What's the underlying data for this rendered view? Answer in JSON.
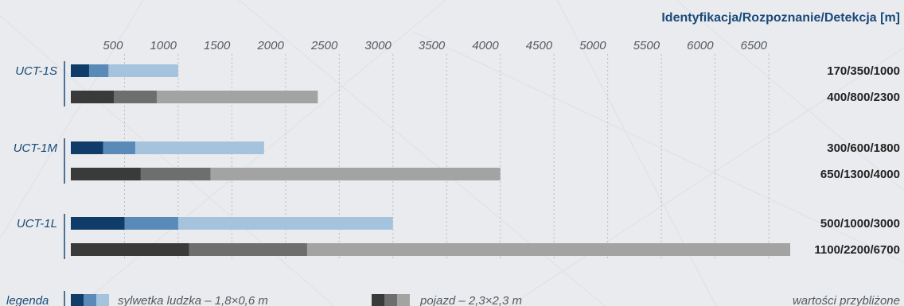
{
  "colors": {
    "human": [
      "#103c6a",
      "#5a8bb8",
      "#a6c3de"
    ],
    "vehicle": [
      "#3a3a3a",
      "#6e6e6e",
      "#a3a3a3"
    ],
    "accent": "#1a4a7a",
    "grid": "#b8bcc2"
  },
  "chart_data": {
    "type": "bar",
    "orientation": "horizontal",
    "stacked": true,
    "title": "Identyfikacja/Rozpoznanie/Detekcja [m]",
    "x_ticks": [
      "500",
      "1000",
      "1500",
      "2000",
      "2500",
      "3000",
      "3500",
      "4000",
      "4500",
      "5000",
      "5500",
      "6000",
      "6500"
    ],
    "xlim": [
      0,
      6700
    ],
    "grid": true,
    "products": [
      {
        "name": "UCT-1S",
        "bars": [
          {
            "kind": "human",
            "values": [
              170,
              350,
              1000
            ],
            "label": "170/350/1000"
          },
          {
            "kind": "vehicle",
            "values": [
              400,
              800,
              2300
            ],
            "label": "400/800/2300"
          }
        ]
      },
      {
        "name": "UCT-1M",
        "bars": [
          {
            "kind": "human",
            "values": [
              300,
              600,
              1800
            ],
            "label": "300/600/1800"
          },
          {
            "kind": "vehicle",
            "values": [
              650,
              1300,
              4000
            ],
            "label": "650/1300/4000"
          }
        ]
      },
      {
        "name": "UCT-1L",
        "bars": [
          {
            "kind": "human",
            "values": [
              500,
              1000,
              3000
            ],
            "label": "500/1000/3000"
          },
          {
            "kind": "vehicle",
            "values": [
              1100,
              2200,
              6700
            ],
            "label": "1100/2200/6700"
          }
        ]
      }
    ],
    "legend": {
      "heading": "legenda",
      "human": "sylwetka ludzka – 1,8×0,6 m",
      "vehicle": "pojazd – 2,3×2,3 m",
      "note": "wartości przybliżone"
    }
  }
}
